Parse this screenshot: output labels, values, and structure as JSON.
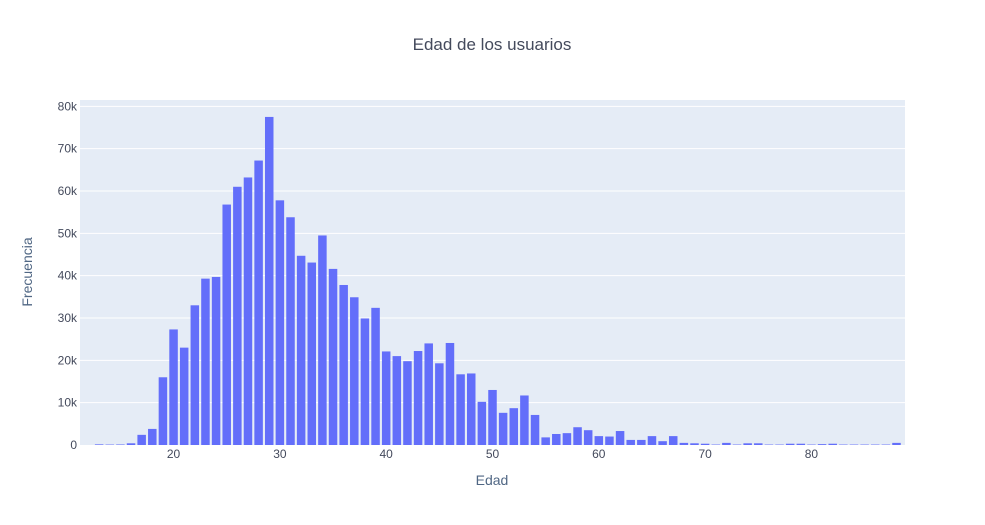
{
  "chart_data": {
    "type": "bar",
    "title": "Edad de los usuarios",
    "xlabel": "Edad",
    "ylabel": "Frecuencia",
    "x": [
      12,
      13,
      14,
      15,
      16,
      17,
      18,
      19,
      20,
      21,
      22,
      23,
      24,
      25,
      26,
      27,
      28,
      29,
      30,
      31,
      32,
      33,
      34,
      35,
      36,
      37,
      38,
      39,
      40,
      41,
      42,
      43,
      44,
      45,
      46,
      47,
      48,
      49,
      50,
      51,
      52,
      53,
      54,
      55,
      56,
      57,
      58,
      59,
      60,
      61,
      62,
      63,
      64,
      65,
      66,
      67,
      68,
      69,
      70,
      71,
      72,
      73,
      74,
      75,
      76,
      77,
      78,
      79,
      80,
      81,
      82,
      83,
      84,
      85,
      86,
      87,
      88
    ],
    "values": [
      0,
      150,
      100,
      120,
      400,
      2400,
      3800,
      16000,
      27300,
      23000,
      33000,
      39300,
      39700,
      56800,
      61000,
      63200,
      67200,
      77500,
      57800,
      53800,
      44700,
      43100,
      49500,
      41600,
      37800,
      34900,
      29900,
      32400,
      22100,
      21000,
      19800,
      22200,
      24000,
      19300,
      24100,
      16700,
      16900,
      10200,
      13000,
      7600,
      8700,
      11700,
      7100,
      1800,
      2600,
      2800,
      4200,
      3500,
      2100,
      2000,
      3300,
      1200,
      1200,
      2100,
      900,
      2100,
      500,
      400,
      300,
      100,
      500,
      100,
      400,
      400,
      100,
      100,
      300,
      300,
      100,
      200,
      300,
      100,
      100,
      100,
      100,
      100,
      500
    ],
    "xlim": [
      11.2,
      88.8
    ],
    "ylim": [
      0,
      81500
    ],
    "xticks": [
      20,
      30,
      40,
      50,
      60,
      70,
      80
    ],
    "yticks": [
      0,
      10000,
      20000,
      30000,
      40000,
      50000,
      60000,
      70000,
      80000
    ],
    "ytick_labels": [
      "0",
      "10k",
      "20k",
      "30k",
      "40k",
      "50k",
      "60k",
      "70k",
      "80k"
    ],
    "grid": true,
    "legend": "none",
    "colors": {
      "bar": "#636efa",
      "plot_bg": "#e5ecf6",
      "grid": "#ffffff"
    }
  }
}
